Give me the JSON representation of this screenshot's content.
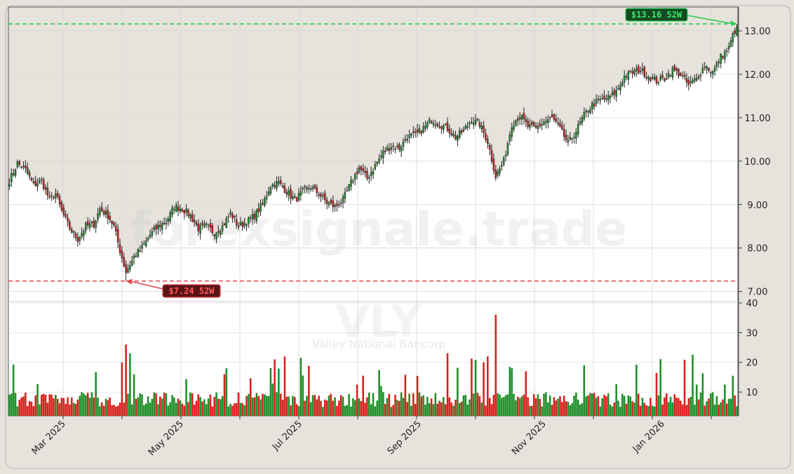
{
  "chart_data": {
    "type": "candlestick",
    "symbol": "VLY",
    "company": "Valley National Bancorp",
    "watermark": "forexsignale.trade",
    "price_axis": {
      "ticks": [
        7.0,
        8.0,
        9.0,
        10.0,
        11.0,
        12.0,
        13.0
      ],
      "tick_labels": [
        "7.00",
        "8.00",
        "9.00",
        "10.00",
        "11.00",
        "12.00",
        "13.00"
      ],
      "range": [
        6.8,
        13.55
      ]
    },
    "volume_axis": {
      "ticks": [
        10,
        20,
        30,
        40
      ],
      "tick_labels": [
        "10",
        "20",
        "30",
        "40"
      ],
      "range": [
        2,
        40
      ]
    },
    "time_axis": {
      "labels": [
        "Mar 2025",
        "May 2025",
        "Jul 2025",
        "Sep 2025",
        "Nov 2025",
        "Jan 2026"
      ],
      "minor_count": 12
    },
    "annotations": {
      "high_label": "$13.16 52W",
      "high_value": 13.16,
      "low_label": "$7.24 52W",
      "low_value": 7.24
    },
    "close_anchors": [
      [
        0,
        9.55
      ],
      [
        4,
        9.95
      ],
      [
        8,
        9.8
      ],
      [
        12,
        9.45
      ],
      [
        16,
        9.55
      ],
      [
        20,
        9.1
      ],
      [
        23,
        9.25
      ],
      [
        26,
        8.85
      ],
      [
        30,
        8.45
      ],
      [
        34,
        8.2
      ],
      [
        38,
        8.5
      ],
      [
        42,
        8.55
      ],
      [
        45,
        8.9
      ],
      [
        49,
        8.75
      ],
      [
        52,
        8.5
      ],
      [
        55,
        7.95
      ],
      [
        58,
        7.45
      ],
      [
        62,
        7.8
      ],
      [
        66,
        8.0
      ],
      [
        70,
        8.3
      ],
      [
        74,
        8.5
      ],
      [
        78,
        8.6
      ],
      [
        82,
        8.95
      ],
      [
        86,
        8.9
      ],
      [
        90,
        8.75
      ],
      [
        94,
        8.45
      ],
      [
        98,
        8.5
      ],
      [
        102,
        8.35
      ],
      [
        106,
        8.5
      ],
      [
        110,
        8.8
      ],
      [
        114,
        8.5
      ],
      [
        118,
        8.6
      ],
      [
        122,
        8.75
      ],
      [
        126,
        9.0
      ],
      [
        130,
        9.45
      ],
      [
        134,
        9.5
      ],
      [
        138,
        9.3
      ],
      [
        142,
        9.1
      ],
      [
        146,
        9.3
      ],
      [
        150,
        9.4
      ],
      [
        154,
        9.25
      ],
      [
        158,
        9.05
      ],
      [
        162,
        8.95
      ],
      [
        166,
        9.1
      ],
      [
        170,
        9.5
      ],
      [
        174,
        9.85
      ],
      [
        178,
        9.6
      ],
      [
        182,
        9.9
      ],
      [
        186,
        10.2
      ],
      [
        190,
        10.35
      ],
      [
        194,
        10.3
      ],
      [
        198,
        10.55
      ],
      [
        202,
        10.6
      ],
      [
        206,
        10.75
      ],
      [
        210,
        10.95
      ],
      [
        214,
        10.85
      ],
      [
        218,
        10.75
      ],
      [
        222,
        10.55
      ],
      [
        226,
        10.7
      ],
      [
        230,
        10.95
      ],
      [
        234,
        10.85
      ],
      [
        238,
        10.45
      ],
      [
        242,
        9.65
      ],
      [
        246,
        10.0
      ],
      [
        250,
        10.85
      ],
      [
        254,
        11.05
      ],
      [
        258,
        10.8
      ],
      [
        262,
        10.75
      ],
      [
        266,
        10.9
      ],
      [
        270,
        11.0
      ],
      [
        274,
        10.75
      ],
      [
        278,
        10.4
      ],
      [
        282,
        10.7
      ],
      [
        286,
        11.05
      ],
      [
        290,
        11.3
      ],
      [
        294,
        11.4
      ],
      [
        298,
        11.45
      ],
      [
        302,
        11.6
      ],
      [
        306,
        11.95
      ],
      [
        310,
        12.05
      ],
      [
        314,
        12.1
      ],
      [
        318,
        11.95
      ],
      [
        322,
        11.85
      ],
      [
        326,
        11.9
      ],
      [
        330,
        12.1
      ],
      [
        334,
        12.0
      ],
      [
        338,
        11.75
      ],
      [
        342,
        11.9
      ],
      [
        346,
        12.2
      ],
      [
        350,
        12.05
      ],
      [
        354,
        12.4
      ],
      [
        358,
        12.6
      ],
      [
        360,
        12.9
      ],
      [
        362,
        13.1
      ]
    ]
  }
}
